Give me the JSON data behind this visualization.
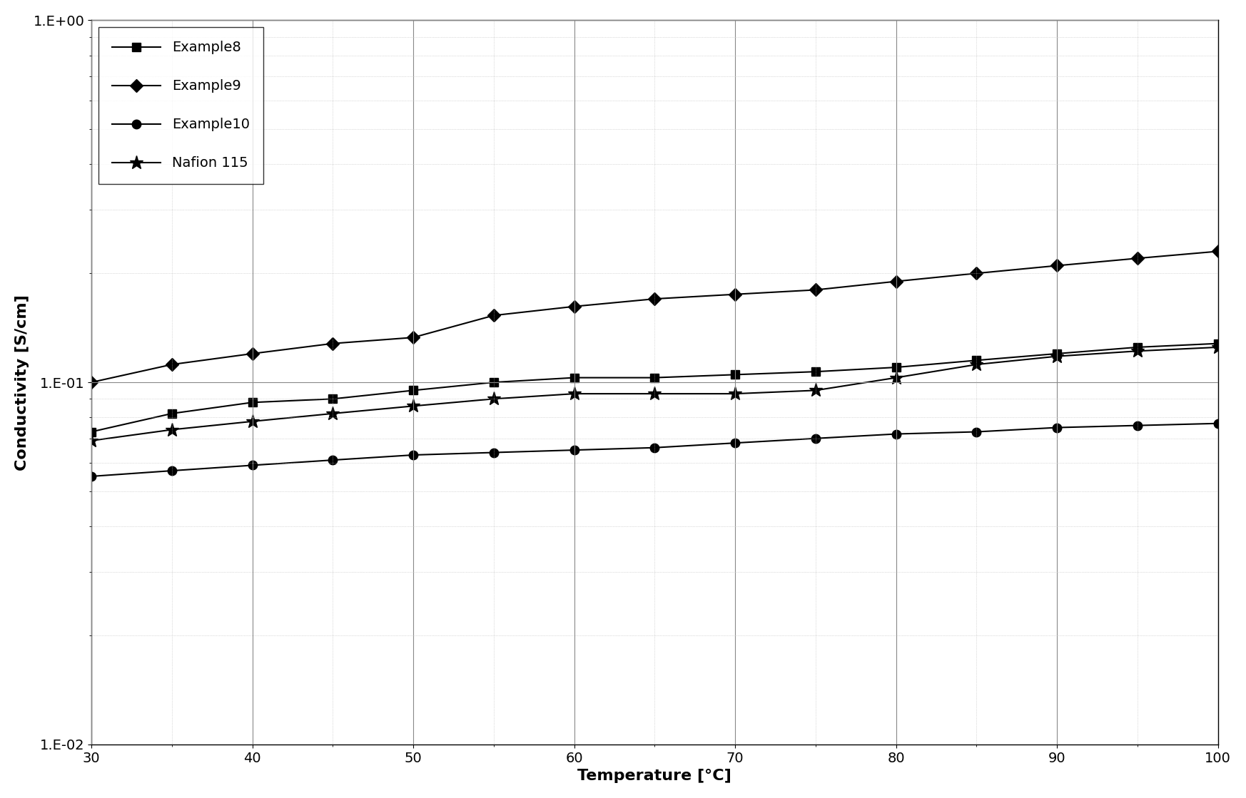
{
  "title": "",
  "xlabel": "Temperature [°C]",
  "ylabel": "Conductivity [S/cm]",
  "xlim": [
    30,
    100
  ],
  "ylim_log": [
    -2,
    0
  ],
  "x": [
    30,
    35,
    40,
    45,
    50,
    55,
    60,
    65,
    70,
    75,
    80,
    85,
    90,
    95,
    100
  ],
  "example8": [
    0.073,
    0.082,
    0.088,
    0.09,
    0.095,
    0.1,
    0.103,
    0.103,
    0.105,
    0.107,
    0.11,
    0.115,
    0.12,
    0.125,
    0.128
  ],
  "example9": [
    0.1,
    0.112,
    0.12,
    0.128,
    0.133,
    0.153,
    0.162,
    0.17,
    0.175,
    0.18,
    0.19,
    0.2,
    0.21,
    0.22,
    0.23
  ],
  "example10": [
    0.055,
    0.057,
    0.059,
    0.061,
    0.063,
    0.064,
    0.065,
    0.066,
    0.068,
    0.07,
    0.072,
    0.073,
    0.075,
    0.076,
    0.077
  ],
  "nafion115": [
    0.069,
    0.074,
    0.078,
    0.082,
    0.086,
    0.09,
    0.093,
    0.093,
    0.093,
    0.095,
    0.103,
    0.112,
    0.118,
    0.122,
    0.125
  ],
  "series_labels": [
    "Example8",
    "Example9",
    "Example10",
    "Nafion 115"
  ],
  "series_colors": [
    "#000000",
    "#000000",
    "#000000",
    "#000000"
  ],
  "example8_marker": "s",
  "example9_marker": "D",
  "example10_marker": "o",
  "nafion115_marker": "*",
  "linewidth": 1.5,
  "markersize_s": 9,
  "markersize_d": 9,
  "markersize_o": 9,
  "markersize_star": 14,
  "background_color": "#ffffff",
  "grid_major_color": "#888888",
  "grid_minor_color": "#bbbbbb",
  "xticks": [
    30,
    40,
    50,
    60,
    70,
    80,
    90,
    100
  ],
  "xtick_labels": [
    "30",
    "40",
    "50",
    "60",
    "70",
    "80",
    "90",
    "100"
  ],
  "legend_loc": "upper left",
  "legend_fontsize": 14,
  "axis_fontsize": 16,
  "tick_fontsize": 14
}
